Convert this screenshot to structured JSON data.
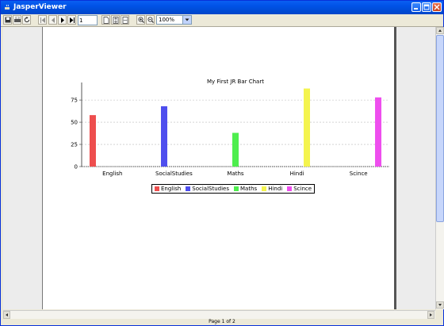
{
  "window": {
    "title": "JasperViewer"
  },
  "toolbar": {
    "page_number": "1",
    "zoom": "100%"
  },
  "status": {
    "page_label": "Page 1 of 2"
  },
  "chart_data": {
    "type": "bar",
    "title": "My First JR Bar Chart",
    "categories": [
      "English",
      "SocialStudies",
      "Maths",
      "Hindi",
      "Scince"
    ],
    "series": [
      {
        "name": "English",
        "color": "#ee4e4e",
        "values": [
          58,
          0,
          0,
          0,
          0
        ]
      },
      {
        "name": "SocialStudies",
        "color": "#4e4eee",
        "values": [
          0,
          68,
          0,
          0,
          0
        ]
      },
      {
        "name": "Maths",
        "color": "#4eee4e",
        "values": [
          0,
          0,
          38,
          0,
          0
        ]
      },
      {
        "name": "Hindi",
        "color": "#f4f44e",
        "values": [
          0,
          0,
          0,
          88,
          0
        ]
      },
      {
        "name": "Scince",
        "color": "#ee4eee",
        "values": [
          0,
          0,
          0,
          0,
          78
        ]
      }
    ],
    "yticks": [
      "0",
      "25",
      "50",
      "75"
    ],
    "ylim": [
      0,
      93
    ],
    "grid": true,
    "legend": "bottom"
  }
}
